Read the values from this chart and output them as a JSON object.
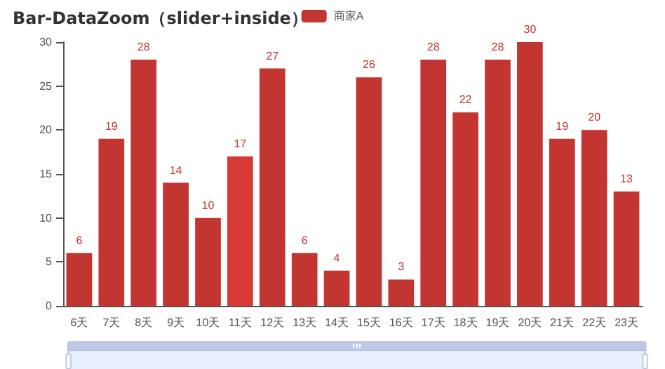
{
  "chart_data": {
    "type": "bar",
    "title": "Bar-DataZoom（slider+inside）",
    "categories": [
      "6天",
      "7天",
      "8天",
      "9天",
      "10天",
      "11天",
      "12天",
      "13天",
      "14天",
      "15天",
      "16天",
      "17天",
      "18天",
      "19天",
      "20天",
      "21天",
      "22天",
      "23天"
    ],
    "series": [
      {
        "name": "商家A",
        "color": "#c23531",
        "colors": [
          "#c23531",
          "#c23531",
          "#c23531",
          "#c23531",
          "#c23531",
          "#d63a35",
          "#c23531",
          "#c23531",
          "#c23531",
          "#c23531",
          "#c23531",
          "#c23531",
          "#c23531",
          "#c23531",
          "#c23531",
          "#c23531",
          "#c23531",
          "#c23531"
        ],
        "values": [
          6,
          19,
          28,
          14,
          10,
          17,
          27,
          6,
          4,
          26,
          3,
          28,
          22,
          28,
          30,
          19,
          20,
          13
        ]
      }
    ],
    "ylim": [
      0,
      30
    ],
    "yticks": [
      0,
      5,
      10,
      15,
      20,
      25,
      30
    ],
    "grid": false,
    "legend": "top",
    "data_labels": true
  }
}
